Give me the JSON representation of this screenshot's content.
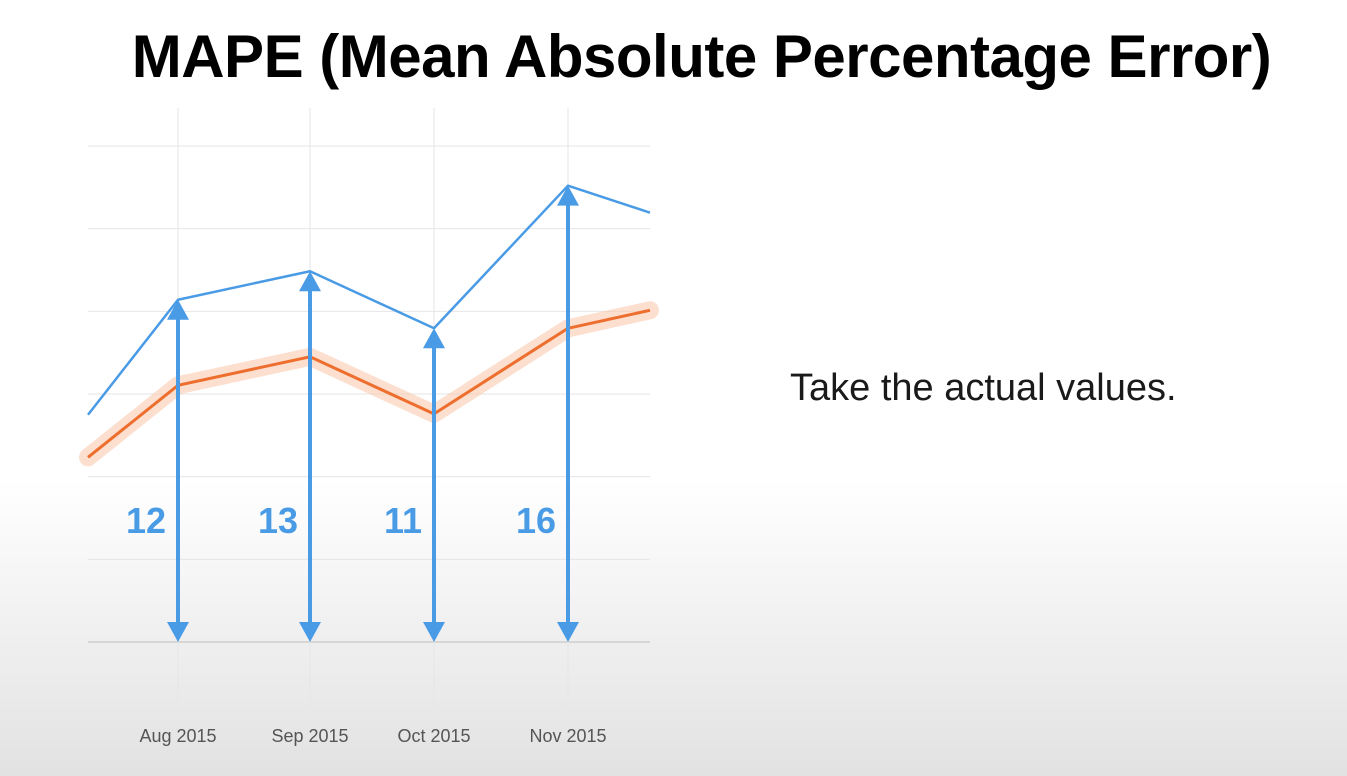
{
  "slide": {
    "title": "MAPE (Mean Absolute Percentage Error)",
    "caption": "Take the actual values."
  },
  "colors": {
    "actual": "#4a9be6",
    "forecast": "#ee6e2e",
    "forecast_band": "#f9c4a8",
    "grid": "#e6e6e6",
    "axis": "#cfcfcf"
  },
  "chart_data": {
    "type": "line",
    "x": [
      "Aug 2015",
      "Sep 2015",
      "Oct 2015",
      "Nov 2015"
    ],
    "series": [
      {
        "role": "actual",
        "values": [
          12,
          13,
          11,
          16
        ]
      },
      {
        "role": "forecast",
        "values": [
          9,
          10,
          8,
          11
        ]
      }
    ],
    "annotations": [
      {
        "x": "Aug 2015",
        "label": "12"
      },
      {
        "x": "Sep 2015",
        "label": "13"
      },
      {
        "x": "Oct 2015",
        "label": "11"
      },
      {
        "x": "Nov 2015",
        "label": "16"
      }
    ],
    "ylim": [
      0,
      20
    ],
    "grid": true,
    "legend": "none",
    "xlabel": "",
    "ylabel": ""
  }
}
